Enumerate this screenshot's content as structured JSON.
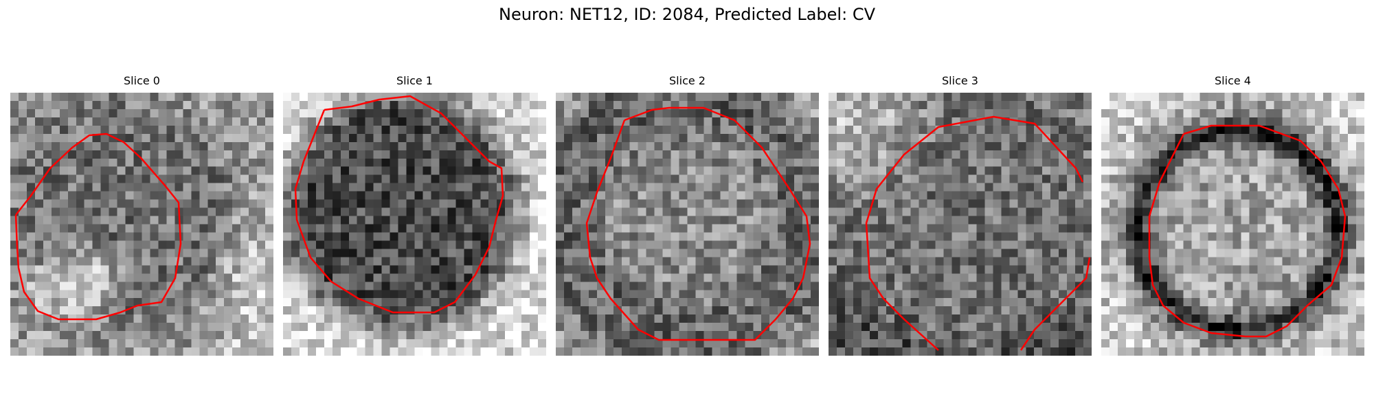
{
  "figure": {
    "title": "Neuron: NET12, ID: 2084, Predicted Label: CV"
  },
  "panels": [
    {
      "title": "Slice 0",
      "contour_color": "#ff0000"
    },
    {
      "title": "Slice 1",
      "contour_color": "#ff0000"
    },
    {
      "title": "Slice 2",
      "contour_color": "#ff0000"
    },
    {
      "title": "Slice 3",
      "contour_color": "#ff0000"
    },
    {
      "title": "Slice 4",
      "contour_color": "#ff0000"
    }
  ]
}
